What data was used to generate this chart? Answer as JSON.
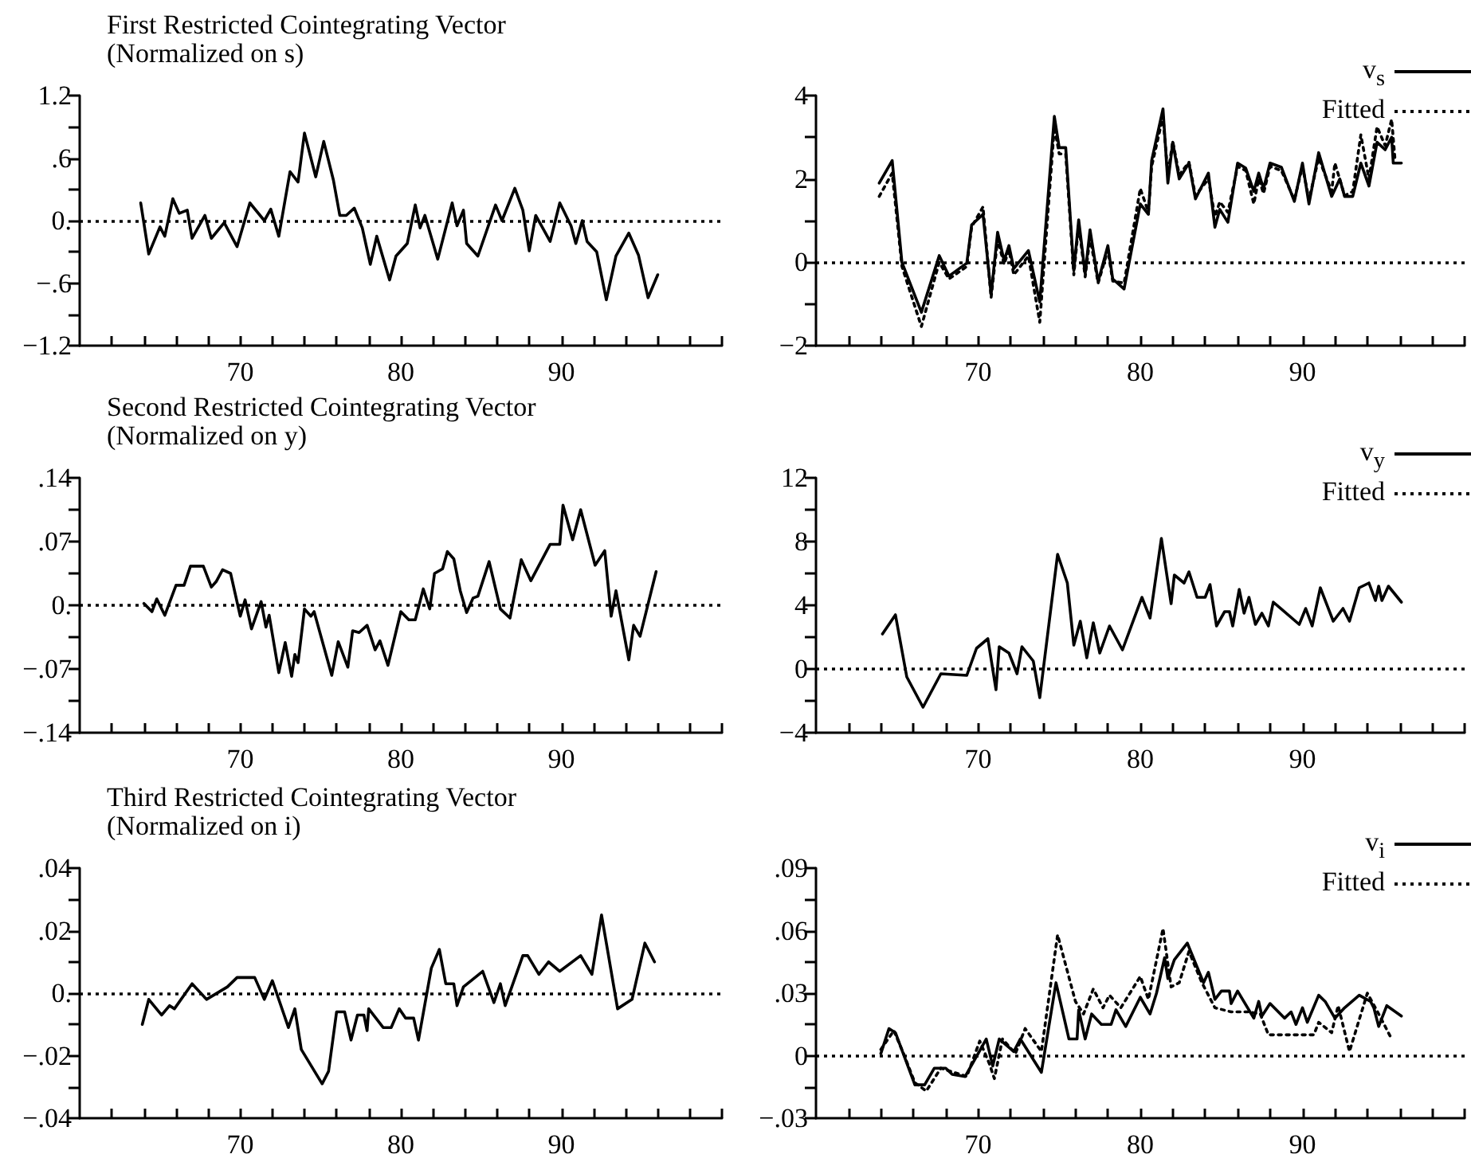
{
  "chart_data": [
    {
      "type": "line",
      "title": "First Restricted Cointegrating Vector",
      "subtitle": "(Normalized on s)",
      "xlim": [
        60,
        100
      ],
      "xticks": [
        {
          "value": 62,
          "label": null
        },
        {
          "value": 64,
          "label": null
        },
        {
          "value": 66,
          "label": null
        },
        {
          "value": 68,
          "label": null
        },
        70,
        {
          "value": 72,
          "label": null
        },
        {
          "value": 74,
          "label": null
        },
        {
          "value": 76,
          "label": null
        },
        {
          "value": 78,
          "label": null
        },
        80,
        {
          "value": 82,
          "label": null
        },
        {
          "value": 84,
          "label": null
        },
        {
          "value": 86,
          "label": null
        },
        {
          "value": 88,
          "label": null
        },
        90,
        {
          "value": 92,
          "label": null
        },
        {
          "value": 94,
          "label": null
        },
        {
          "value": 96,
          "label": null
        },
        {
          "value": 98,
          "label": null
        },
        {
          "value": 100,
          "label": null
        }
      ],
      "ylim": [
        -1.2,
        1.2
      ],
      "yticks": [
        {
          "value": -1.2,
          "label": "−1.2"
        },
        {
          "value": -0.9,
          "label": null
        },
        {
          "value": -0.6,
          "label": "−.6"
        },
        {
          "value": -0.3,
          "label": null
        },
        {
          "value": 0,
          "label": "0."
        },
        {
          "value": 0.3,
          "label": null
        },
        {
          "value": 0.6,
          "label": ".6"
        },
        {
          "value": 0.9,
          "label": null
        },
        1.2
      ],
      "ref_lines": [
        {
          "axis": "y",
          "value": 0,
          "color": "#000000",
          "line_style": "dotted"
        }
      ],
      "series": [
        {
          "color": "#000000",
          "line_style": "solid",
          "x": [
            63.8,
            64.3,
            65.0,
            65.3,
            65.8,
            66.2,
            66.7,
            67.0,
            67.8,
            68.2,
            69.0,
            69.8,
            70.6,
            71.5,
            71.9,
            72.4,
            73.1,
            73.6,
            74.0,
            74.7,
            75.2,
            75.8,
            76.2,
            76.6,
            77.1,
            77.6,
            78.1,
            78.5,
            79.3,
            79.7,
            80.4,
            80.9,
            81.2,
            81.5,
            82.3,
            83.2,
            83.5,
            83.9,
            84.1,
            84.8,
            85.9,
            86.3,
            87.1,
            87.6,
            88.0,
            88.4,
            89.3,
            89.9,
            90.6,
            90.9,
            91.3,
            91.6,
            92.2,
            92.8,
            93.4,
            94.2,
            94.8,
            95.4,
            96.0
          ],
          "values": [
            0.17,
            -0.32,
            -0.06,
            -0.15,
            0.21,
            0.07,
            0.1,
            -0.17,
            0.05,
            -0.17,
            -0.02,
            -0.25,
            0.17,
            0.0,
            0.11,
            -0.15,
            0.47,
            0.37,
            0.84,
            0.42,
            0.76,
            0.39,
            0.05,
            0.05,
            0.12,
            -0.07,
            -0.42,
            -0.15,
            -0.57,
            -0.34,
            -0.22,
            0.15,
            -0.07,
            0.05,
            -0.37,
            0.17,
            -0.05,
            0.1,
            -0.22,
            -0.34,
            0.15,
            0.0,
            0.31,
            0.1,
            -0.29,
            0.05,
            -0.2,
            0.17,
            -0.05,
            -0.22,
            0.0,
            -0.2,
            -0.3,
            -0.76,
            -0.34,
            -0.12,
            -0.33,
            -0.74,
            -0.52
          ]
        }
      ]
    },
    {
      "type": "line",
      "legend": "top right",
      "xlim": [
        60,
        100
      ],
      "xticks": [
        {
          "value": 62,
          "label": null
        },
        {
          "value": 64,
          "label": null
        },
        {
          "value": 66,
          "label": null
        },
        {
          "value": 68,
          "label": null
        },
        70,
        {
          "value": 72,
          "label": null
        },
        {
          "value": 74,
          "label": null
        },
        {
          "value": 76,
          "label": null
        },
        {
          "value": 78,
          "label": null
        },
        80,
        {
          "value": 82,
          "label": null
        },
        {
          "value": 84,
          "label": null
        },
        {
          "value": 86,
          "label": null
        },
        {
          "value": 88,
          "label": null
        },
        90,
        {
          "value": 92,
          "label": null
        },
        {
          "value": 94,
          "label": null
        },
        {
          "value": 96,
          "label": null
        },
        {
          "value": 98,
          "label": null
        },
        {
          "value": 100,
          "label": null
        }
      ],
      "ylim": [
        -2,
        4
      ],
      "yticks": [
        {
          "value": -2,
          "label": "−2"
        },
        {
          "value": -1,
          "label": null
        },
        0,
        {
          "value": 1,
          "label": null
        },
        2,
        {
          "value": 3,
          "label": null
        },
        4
      ],
      "ref_lines": [
        {
          "axis": "y",
          "value": 0,
          "color": "#000000",
          "line_style": "dotted"
        }
      ],
      "series": [
        {
          "name": "v$_{s}$",
          "color": "#000000",
          "line_style": "solid",
          "x": [
            63.9,
            64.7,
            65.3,
            66.5,
            67.6,
            68.2,
            69.3,
            69.6,
            70.3,
            70.8,
            71.2,
            71.6,
            71.9,
            72.2,
            73.1,
            73.8,
            74.7,
            75.0,
            75.4,
            75.9,
            76.2,
            76.6,
            76.9,
            77.4,
            78.0,
            78.3,
            79.0,
            80.0,
            80.5,
            80.7,
            81.4,
            81.7,
            82.0,
            82.4,
            83.0,
            83.4,
            84.2,
            84.6,
            84.9,
            85.4,
            86.0,
            86.5,
            87.0,
            87.3,
            87.6,
            88.0,
            88.7,
            89.5,
            90.0,
            90.4,
            91.0,
            91.8,
            92.3,
            92.6,
            93.1,
            93.6,
            94.1,
            94.6,
            95.1,
            95.5,
            95.6,
            96.1
          ],
          "values": [
            1.9,
            2.44,
            0.0,
            -1.2,
            0.16,
            -0.33,
            -0.02,
            0.9,
            1.15,
            -0.77,
            0.72,
            0.04,
            0.4,
            -0.15,
            0.28,
            -0.95,
            3.5,
            2.75,
            2.75,
            -0.2,
            1.02,
            -0.27,
            0.78,
            -0.46,
            0.4,
            -0.4,
            -0.64,
            1.4,
            1.15,
            2.44,
            3.68,
            1.9,
            2.88,
            2.0,
            2.38,
            1.52,
            2.14,
            0.84,
            1.27,
            0.96,
            2.38,
            2.26,
            1.7,
            2.14,
            1.77,
            2.38,
            2.28,
            1.46,
            2.38,
            1.4,
            2.63,
            1.58,
            2.0,
            1.58,
            1.58,
            2.38,
            1.83,
            2.88,
            2.7,
            3.0,
            2.38,
            2.38
          ]
        },
        {
          "name": "Fitted",
          "color": "#000000",
          "line_style": "dotted",
          "x": [
            63.9,
            64.7,
            65.3,
            66.5,
            67.6,
            68.2,
            69.3,
            69.6,
            70.3,
            70.8,
            71.2,
            71.6,
            71.9,
            72.2,
            73.1,
            73.8,
            74.7,
            75.0,
            75.4,
            75.9,
            76.2,
            76.6,
            76.9,
            77.4,
            78.0,
            78.3,
            79.0,
            80.0,
            80.5,
            80.7,
            81.4,
            81.7,
            82.0,
            82.4,
            83.0,
            83.4,
            84.2,
            84.6,
            84.9,
            85.4,
            86.0,
            86.5,
            87.0,
            87.3,
            87.6,
            88.0,
            88.7,
            89.5,
            90.0,
            90.4,
            91.0,
            91.8,
            92.0,
            92.6,
            93.1,
            93.6,
            94.1,
            94.6,
            95.1,
            95.5,
            95.7
          ],
          "values": [
            1.58,
            2.14,
            -0.1,
            -1.54,
            0.0,
            -0.4,
            -0.1,
            0.85,
            1.33,
            -0.85,
            0.55,
            -0.05,
            0.3,
            -0.3,
            0.15,
            -1.44,
            3.25,
            2.6,
            2.6,
            -0.3,
            0.9,
            -0.35,
            0.6,
            -0.5,
            0.3,
            -0.45,
            -0.5,
            1.77,
            1.2,
            2.3,
            3.5,
            2.1,
            2.9,
            2.1,
            2.4,
            1.6,
            2.0,
            1.1,
            1.45,
            1.2,
            2.3,
            2.2,
            1.4,
            2.0,
            1.65,
            2.3,
            2.2,
            1.5,
            2.3,
            1.5,
            2.5,
            1.7,
            2.38,
            1.6,
            1.7,
            3.06,
            2.0,
            3.25,
            2.8,
            3.43,
            2.5
          ]
        }
      ]
    },
    {
      "type": "line",
      "title": "Second Restricted Cointegrating Vector",
      "subtitle": "(Normalized on y)",
      "xlim": [
        60,
        100
      ],
      "xticks": [
        {
          "value": 62,
          "label": null
        },
        {
          "value": 64,
          "label": null
        },
        {
          "value": 66,
          "label": null
        },
        {
          "value": 68,
          "label": null
        },
        70,
        {
          "value": 72,
          "label": null
        },
        {
          "value": 74,
          "label": null
        },
        {
          "value": 76,
          "label": null
        },
        {
          "value": 78,
          "label": null
        },
        80,
        {
          "value": 82,
          "label": null
        },
        {
          "value": 84,
          "label": null
        },
        {
          "value": 86,
          "label": null
        },
        {
          "value": 88,
          "label": null
        },
        90,
        {
          "value": 92,
          "label": null
        },
        {
          "value": 94,
          "label": null
        },
        {
          "value": 96,
          "label": null
        },
        {
          "value": 98,
          "label": null
        },
        {
          "value": 100,
          "label": null
        }
      ],
      "ylim": [
        -0.14,
        0.14
      ],
      "yticks": [
        {
          "value": -0.14,
          "label": "−.14"
        },
        {
          "value": -0.105,
          "label": null
        },
        {
          "value": -0.07,
          "label": "−.07"
        },
        {
          "value": -0.035,
          "label": null
        },
        {
          "value": 0,
          "label": "0."
        },
        {
          "value": 0.035,
          "label": null
        },
        {
          "value": 0.07,
          "label": ".07"
        },
        {
          "value": 0.105,
          "label": null
        },
        {
          "value": 0.14,
          "label": ".14"
        }
      ],
      "ref_lines": [
        {
          "axis": "y",
          "value": 0,
          "color": "#000000",
          "line_style": "dotted"
        }
      ],
      "series": [
        {
          "color": "#000000",
          "line_style": "solid",
          "x": [
            64.0,
            64.5,
            64.8,
            65.3,
            66.0,
            66.5,
            66.9,
            67.7,
            68.2,
            68.5,
            68.9,
            69.4,
            70.0,
            70.3,
            70.7,
            71.3,
            71.6,
            71.8,
            72.4,
            72.8,
            73.2,
            73.4,
            73.6,
            74.0,
            74.4,
            74.6,
            75.7,
            76.1,
            76.7,
            77.0,
            77.4,
            77.9,
            78.4,
            78.7,
            79.2,
            80.0,
            80.5,
            80.9,
            81.4,
            81.8,
            82.1,
            82.6,
            82.9,
            83.3,
            83.7,
            84.1,
            84.5,
            84.8,
            85.5,
            86.2,
            86.8,
            87.5,
            88.1,
            89.3,
            89.9,
            90.1,
            90.7,
            91.2,
            92.1,
            92.7,
            93.1,
            93.4,
            94.2,
            94.5,
            94.9,
            95.9
          ],
          "values": [
            0.002,
            -0.007,
            0.007,
            -0.011,
            0.022,
            0.022,
            0.043,
            0.043,
            0.02,
            0.026,
            0.039,
            0.035,
            -0.012,
            0.006,
            -0.026,
            0.004,
            -0.024,
            -0.011,
            -0.074,
            -0.041,
            -0.078,
            -0.054,
            -0.063,
            -0.004,
            -0.012,
            -0.007,
            -0.077,
            -0.04,
            -0.068,
            -0.028,
            -0.03,
            -0.022,
            -0.049,
            -0.039,
            -0.066,
            -0.007,
            -0.016,
            -0.016,
            0.018,
            -0.004,
            0.035,
            0.04,
            0.059,
            0.051,
            0.016,
            -0.008,
            0.008,
            0.01,
            0.048,
            -0.004,
            -0.014,
            0.05,
            0.027,
            0.067,
            0.067,
            0.11,
            0.072,
            0.105,
            0.044,
            0.06,
            -0.012,
            0.016,
            -0.06,
            -0.022,
            -0.034,
            0.037
          ]
        }
      ]
    },
    {
      "type": "line",
      "legend": "top right",
      "xlim": [
        60,
        100
      ],
      "xticks": [
        {
          "value": 62,
          "label": null
        },
        {
          "value": 64,
          "label": null
        },
        {
          "value": 66,
          "label": null
        },
        {
          "value": 68,
          "label": null
        },
        70,
        {
          "value": 72,
          "label": null
        },
        {
          "value": 74,
          "label": null
        },
        {
          "value": 76,
          "label": null
        },
        {
          "value": 78,
          "label": null
        },
        80,
        {
          "value": 82,
          "label": null
        },
        {
          "value": 84,
          "label": null
        },
        {
          "value": 86,
          "label": null
        },
        {
          "value": 88,
          "label": null
        },
        90,
        {
          "value": 92,
          "label": null
        },
        {
          "value": 94,
          "label": null
        },
        {
          "value": 96,
          "label": null
        },
        {
          "value": 98,
          "label": null
        },
        {
          "value": 100,
          "label": null
        }
      ],
      "ylim": [
        -4,
        12
      ],
      "yticks": [
        {
          "value": -4,
          "label": "−4"
        },
        {
          "value": -2,
          "label": null
        },
        0,
        {
          "value": 2,
          "label": null
        },
        4,
        {
          "value": 6,
          "label": null
        },
        8,
        {
          "value": 10,
          "label": null
        },
        12
      ],
      "ref_lines": [
        {
          "axis": "y",
          "value": 0,
          "color": "#000000",
          "line_style": "dotted"
        }
      ],
      "series": [
        {
          "name": "v$_{y}$",
          "color": "#000000",
          "line_style": "solid",
          "x": [
            64.1,
            64.9,
            65.6,
            66.6,
            67.7,
            69.3,
            69.9,
            70.6,
            71.1,
            71.3,
            71.9,
            72.4,
            72.7,
            73.4,
            73.8,
            74.9,
            75.5,
            75.9,
            76.3,
            76.7,
            77.1,
            77.5,
            78.1,
            78.9,
            80.1,
            80.6,
            81.3,
            81.9,
            82.1,
            82.7,
            83.0,
            83.5,
            84.0,
            84.3,
            84.7,
            85.2,
            85.5,
            85.7,
            86.1,
            86.4,
            86.7,
            87.1,
            87.5,
            87.9,
            88.2,
            89.8,
            90.2,
            90.6,
            91.1,
            91.9,
            92.5,
            92.9,
            93.5,
            94.1,
            94.5,
            94.7,
            94.9,
            95.3,
            96.1
          ],
          "values": [
            2.2,
            3.4,
            -0.5,
            -2.4,
            -0.3,
            -0.4,
            1.3,
            1.9,
            -1.3,
            1.4,
            1.0,
            -0.3,
            1.4,
            0.5,
            -1.8,
            7.2,
            5.4,
            1.5,
            3.0,
            0.7,
            2.9,
            1.0,
            2.7,
            1.2,
            4.5,
            3.2,
            8.2,
            4.1,
            5.9,
            5.4,
            6.1,
            4.5,
            4.5,
            5.3,
            2.7,
            3.6,
            3.6,
            2.7,
            5.0,
            3.5,
            4.5,
            2.8,
            3.5,
            2.7,
            4.2,
            2.8,
            3.8,
            2.7,
            5.1,
            3.0,
            3.8,
            3.0,
            5.1,
            5.4,
            4.3,
            5.2,
            4.3,
            5.2,
            4.2
          ]
        },
        {
          "name": "Fitted",
          "color": "#000000",
          "line_style": "dotted"
        }
      ]
    },
    {
      "type": "line",
      "title": "Third Restricted Cointegrating Vector",
      "subtitle": "(Normalized on i)",
      "xlim": [
        60,
        100
      ],
      "xticks": [
        {
          "value": 62,
          "label": null
        },
        {
          "value": 64,
          "label": null
        },
        {
          "value": 66,
          "label": null
        },
        {
          "value": 68,
          "label": null
        },
        70,
        {
          "value": 72,
          "label": null
        },
        {
          "value": 74,
          "label": null
        },
        {
          "value": 76,
          "label": null
        },
        {
          "value": 78,
          "label": null
        },
        80,
        {
          "value": 82,
          "label": null
        },
        {
          "value": 84,
          "label": null
        },
        {
          "value": 86,
          "label": null
        },
        {
          "value": 88,
          "label": null
        },
        90,
        {
          "value": 92,
          "label": null
        },
        {
          "value": 94,
          "label": null
        },
        {
          "value": 96,
          "label": null
        },
        {
          "value": 98,
          "label": null
        },
        {
          "value": 100,
          "label": null
        }
      ],
      "ylim": [
        -0.04,
        0.04
      ],
      "yticks": [
        {
          "value": -0.04,
          "label": "−.04"
        },
        {
          "value": -0.03,
          "label": null
        },
        {
          "value": -0.02,
          "label": "−.02"
        },
        {
          "value": -0.01,
          "label": null
        },
        {
          "value": 0,
          "label": "0."
        },
        {
          "value": 0.01,
          "label": null
        },
        {
          "value": 0.02,
          "label": ".02"
        },
        {
          "value": 0.03,
          "label": null
        },
        {
          "value": 0.04,
          "label": ".04"
        }
      ],
      "ref_lines": [
        {
          "axis": "y",
          "value": 0,
          "color": "#000000",
          "line_style": "dotted"
        }
      ],
      "series": [
        {
          "color": "#000000",
          "line_style": "solid",
          "x": [
            63.9,
            64.3,
            65.1,
            65.6,
            65.9,
            67.0,
            67.9,
            69.2,
            69.8,
            70.9,
            71.5,
            72.0,
            73.0,
            73.4,
            73.8,
            75.1,
            75.5,
            76.0,
            76.5,
            76.9,
            77.3,
            77.7,
            77.9,
            78.0,
            78.9,
            79.4,
            79.9,
            80.3,
            80.8,
            81.1,
            81.9,
            82.4,
            82.8,
            83.3,
            83.5,
            83.9,
            85.1,
            85.8,
            86.2,
            86.5,
            87.6,
            87.9,
            88.6,
            89.2,
            89.9,
            91.2,
            91.9,
            92.5,
            93.5,
            94.4,
            95.2,
            95.8
          ],
          "values": [
            -0.01,
            -0.002,
            -0.007,
            -0.004,
            -0.005,
            0.003,
            -0.002,
            0.002,
            0.005,
            0.005,
            -0.002,
            0.004,
            -0.011,
            -0.005,
            -0.018,
            -0.029,
            -0.025,
            -0.006,
            -0.006,
            -0.015,
            -0.007,
            -0.007,
            -0.012,
            -0.005,
            -0.011,
            -0.011,
            -0.005,
            -0.008,
            -0.008,
            -0.015,
            0.008,
            0.014,
            0.003,
            0.003,
            -0.004,
            0.002,
            0.007,
            -0.003,
            0.003,
            -0.004,
            0.012,
            0.012,
            0.006,
            0.01,
            0.007,
            0.012,
            0.006,
            0.025,
            -0.005,
            -0.002,
            0.016,
            0.01
          ]
        }
      ]
    },
    {
      "type": "line",
      "legend": "top right",
      "xlim": [
        60,
        100
      ],
      "xticks": [
        {
          "value": 62,
          "label": null
        },
        {
          "value": 64,
          "label": null
        },
        {
          "value": 66,
          "label": null
        },
        {
          "value": 68,
          "label": null
        },
        70,
        {
          "value": 72,
          "label": null
        },
        {
          "value": 74,
          "label": null
        },
        {
          "value": 76,
          "label": null
        },
        {
          "value": 78,
          "label": null
        },
        80,
        {
          "value": 82,
          "label": null
        },
        {
          "value": 84,
          "label": null
        },
        {
          "value": 86,
          "label": null
        },
        {
          "value": 88,
          "label": null
        },
        90,
        {
          "value": 92,
          "label": null
        },
        {
          "value": 94,
          "label": null
        },
        {
          "value": 96,
          "label": null
        },
        {
          "value": 98,
          "label": null
        },
        {
          "value": 100,
          "label": null
        }
      ],
      "ylim": [
        -0.03,
        0.09
      ],
      "yticks": [
        {
          "value": -0.03,
          "label": "−.03"
        },
        {
          "value": -0.015,
          "label": null
        },
        0,
        {
          "value": 0.015,
          "label": null
        },
        {
          "value": 0.03,
          "label": ".03"
        },
        {
          "value": 0.045,
          "label": null
        },
        {
          "value": 0.06,
          "label": ".06"
        },
        {
          "value": 0.075,
          "label": null
        },
        {
          "value": 0.09,
          "label": ".09"
        }
      ],
      "ref_lines": [
        {
          "axis": "y",
          "value": 0,
          "color": "#000000",
          "line_style": "dotted"
        }
      ],
      "series": [
        {
          "name": "v$_{i}$",
          "color": "#000000",
          "line_style": "solid",
          "x": [
            64.0,
            64.5,
            64.9,
            66.1,
            66.7,
            67.3,
            68.0,
            68.4,
            69.2,
            70.0,
            70.5,
            70.9,
            71.3,
            72.2,
            72.6,
            73.9,
            74.8,
            75.6,
            76.1,
            76.2,
            76.6,
            77.0,
            77.6,
            78.2,
            78.5,
            79.1,
            80.0,
            80.6,
            81.0,
            81.5,
            81.7,
            82.1,
            82.9,
            83.9,
            84.2,
            84.6,
            85.0,
            85.5,
            85.6,
            86.0,
            87.0,
            87.3,
            87.5,
            88.0,
            88.9,
            89.3,
            89.6,
            90.0,
            90.3,
            91.0,
            91.4,
            92.0,
            92.6,
            93.5,
            94.2,
            94.4,
            94.7,
            95.2,
            96.1
          ],
          "values": [
            0.001,
            0.013,
            0.011,
            -0.014,
            -0.014,
            -0.006,
            -0.006,
            -0.009,
            -0.01,
            0.001,
            0.008,
            -0.005,
            0.008,
            0.002,
            0.008,
            -0.008,
            0.035,
            0.008,
            0.008,
            0.022,
            0.008,
            0.02,
            0.015,
            0.015,
            0.022,
            0.014,
            0.028,
            0.02,
            0.03,
            0.047,
            0.037,
            0.046,
            0.054,
            0.035,
            0.04,
            0.027,
            0.031,
            0.031,
            0.025,
            0.031,
            0.018,
            0.026,
            0.019,
            0.025,
            0.018,
            0.021,
            0.015,
            0.023,
            0.016,
            0.029,
            0.026,
            0.018,
            0.023,
            0.029,
            0.026,
            0.023,
            0.014,
            0.024,
            0.019
          ]
        },
        {
          "name": "Fitted",
          "color": "#000000",
          "line_style": "dotted",
          "x": [
            64.0,
            64.8,
            65.4,
            66.1,
            66.8,
            67.7,
            69.3,
            70.1,
            70.7,
            71.0,
            71.5,
            72.3,
            72.9,
            73.9,
            74.9,
            76.0,
            76.5,
            77.1,
            77.7,
            78.1,
            78.8,
            80.0,
            80.5,
            81.4,
            81.9,
            82.4,
            83.0,
            83.8,
            84.6,
            85.6,
            86.7,
            87.4,
            87.9,
            90.7,
            91.0,
            91.8,
            92.2,
            92.9,
            94.0,
            94.7,
            95.5
          ],
          "values": [
            0.003,
            0.012,
            0.001,
            -0.013,
            -0.017,
            -0.006,
            -0.01,
            0.007,
            -0.004,
            -0.011,
            0.008,
            0.001,
            0.013,
            0.002,
            0.058,
            0.026,
            0.02,
            0.032,
            0.023,
            0.029,
            0.023,
            0.038,
            0.027,
            0.061,
            0.033,
            0.035,
            0.05,
            0.035,
            0.023,
            0.021,
            0.021,
            0.02,
            0.01,
            0.01,
            0.016,
            0.011,
            0.024,
            0.002,
            0.03,
            0.02,
            0.008
          ]
        }
      ]
    }
  ]
}
